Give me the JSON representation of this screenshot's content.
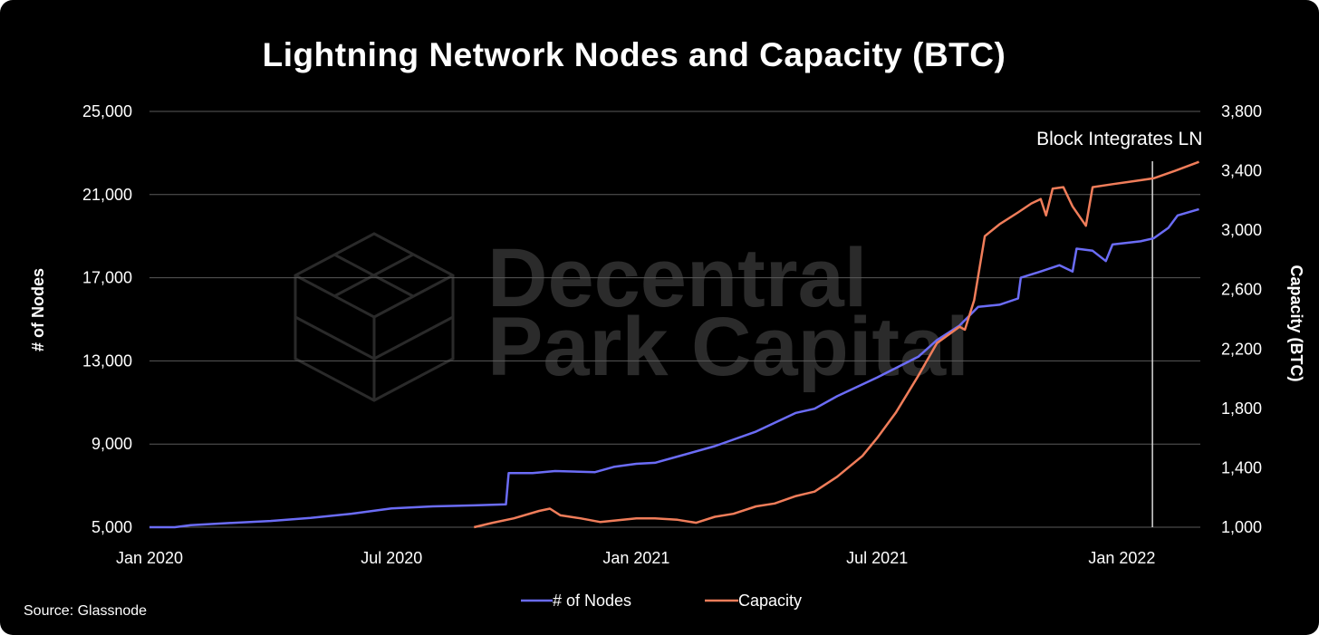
{
  "source": "Source: Glassnode",
  "watermark": {
    "line1": "Decentral",
    "line2": "Park Capital"
  },
  "chart_data": {
    "type": "line",
    "title": "Lightning Network Nodes and Capacity (BTC)",
    "xlabel": "",
    "ylabel": "# of Nodes",
    "y2label": "Capacity (BTC)",
    "x_ticks": [
      "Jan 2020",
      "Jul 2020",
      "Jan 2021",
      "Jul 2021",
      "Jan 2022"
    ],
    "y_ticks": [
      "5,000",
      "9,000",
      "13,000",
      "17,000",
      "21,000",
      "25,000"
    ],
    "y2_ticks": [
      "1,000",
      "1,400",
      "1,800",
      "2,200",
      "2,600",
      "3,000",
      "3,400",
      "3,800"
    ],
    "xlim": [
      "2020-01-01",
      "2022-03-01"
    ],
    "ylim": [
      5000,
      25000
    ],
    "y2lim": [
      1000,
      3800
    ],
    "grid": true,
    "legend_position": "bottom-center",
    "colors": {
      "nodes": "#6b6cf6",
      "capacity": "#f07d5a",
      "background": "#000000",
      "grid": "#5a5a5a"
    },
    "annotation": {
      "label": "Block Integrates LN",
      "date": "2022-01-24"
    },
    "series": [
      {
        "name": "# of Nodes",
        "axis": "left",
        "points": [
          [
            "2020-01-01",
            5000
          ],
          [
            "2020-01-20",
            5000
          ],
          [
            "2020-02-01",
            5100
          ],
          [
            "2020-03-01",
            5200
          ],
          [
            "2020-04-01",
            5300
          ],
          [
            "2020-05-01",
            5450
          ],
          [
            "2020-06-01",
            5650
          ],
          [
            "2020-07-01",
            5900
          ],
          [
            "2020-08-01",
            6000
          ],
          [
            "2020-09-01",
            6050
          ],
          [
            "2020-09-25",
            6100
          ],
          [
            "2020-09-27",
            7600
          ],
          [
            "2020-10-15",
            7600
          ],
          [
            "2020-11-01",
            7700
          ],
          [
            "2020-12-01",
            7650
          ],
          [
            "2020-12-15",
            7900
          ],
          [
            "2021-01-01",
            8050
          ],
          [
            "2021-01-15",
            8100
          ],
          [
            "2021-02-01",
            8400
          ],
          [
            "2021-03-01",
            8900
          ],
          [
            "2021-04-01",
            9600
          ],
          [
            "2021-05-01",
            10500
          ],
          [
            "2021-05-15",
            10700
          ],
          [
            "2021-06-01",
            11300
          ],
          [
            "2021-07-01",
            12200
          ],
          [
            "2021-08-01",
            13200
          ],
          [
            "2021-08-15",
            14000
          ],
          [
            "2021-09-01",
            14700
          ],
          [
            "2021-09-15",
            15600
          ],
          [
            "2021-10-01",
            15700
          ],
          [
            "2021-10-15",
            16000
          ],
          [
            "2021-10-17",
            17000
          ],
          [
            "2021-11-01",
            17300
          ],
          [
            "2021-11-15",
            17600
          ],
          [
            "2021-11-25",
            17300
          ],
          [
            "2021-11-28",
            18400
          ],
          [
            "2021-12-10",
            18300
          ],
          [
            "2021-12-20",
            17800
          ],
          [
            "2021-12-25",
            18600
          ],
          [
            "2022-01-15",
            18750
          ],
          [
            "2022-01-25",
            18900
          ],
          [
            "2022-02-05",
            19400
          ],
          [
            "2022-02-12",
            20000
          ],
          [
            "2022-02-28",
            20300
          ]
        ]
      },
      {
        "name": "Capacity",
        "axis": "right",
        "points": [
          [
            "2020-09-01",
            1000
          ],
          [
            "2020-09-15",
            1030
          ],
          [
            "2020-10-01",
            1060
          ],
          [
            "2020-10-20",
            1110
          ],
          [
            "2020-10-28",
            1125
          ],
          [
            "2020-11-05",
            1080
          ],
          [
            "2020-11-20",
            1060
          ],
          [
            "2020-12-05",
            1035
          ],
          [
            "2021-01-01",
            1060
          ],
          [
            "2021-01-15",
            1060
          ],
          [
            "2021-02-01",
            1050
          ],
          [
            "2021-02-15",
            1030
          ],
          [
            "2021-03-01",
            1070
          ],
          [
            "2021-03-15",
            1090
          ],
          [
            "2021-04-01",
            1140
          ],
          [
            "2021-04-15",
            1160
          ],
          [
            "2021-05-01",
            1210
          ],
          [
            "2021-05-15",
            1240
          ],
          [
            "2021-06-01",
            1340
          ],
          [
            "2021-06-20",
            1480
          ],
          [
            "2021-07-01",
            1600
          ],
          [
            "2021-07-15",
            1770
          ],
          [
            "2021-08-01",
            2020
          ],
          [
            "2021-08-15",
            2240
          ],
          [
            "2021-09-01",
            2350
          ],
          [
            "2021-09-05",
            2330
          ],
          [
            "2021-09-12",
            2530
          ],
          [
            "2021-09-20",
            2960
          ],
          [
            "2021-10-01",
            3040
          ],
          [
            "2021-10-15",
            3120
          ],
          [
            "2021-10-25",
            3180
          ],
          [
            "2021-11-01",
            3210
          ],
          [
            "2021-11-05",
            3100
          ],
          [
            "2021-11-10",
            3280
          ],
          [
            "2021-11-18",
            3290
          ],
          [
            "2021-11-25",
            3160
          ],
          [
            "2021-12-05",
            3030
          ],
          [
            "2021-12-10",
            3290
          ],
          [
            "2021-12-25",
            3310
          ],
          [
            "2022-01-10",
            3330
          ],
          [
            "2022-01-25",
            3350
          ],
          [
            "2022-02-10",
            3400
          ],
          [
            "2022-02-28",
            3460
          ]
        ]
      }
    ]
  }
}
